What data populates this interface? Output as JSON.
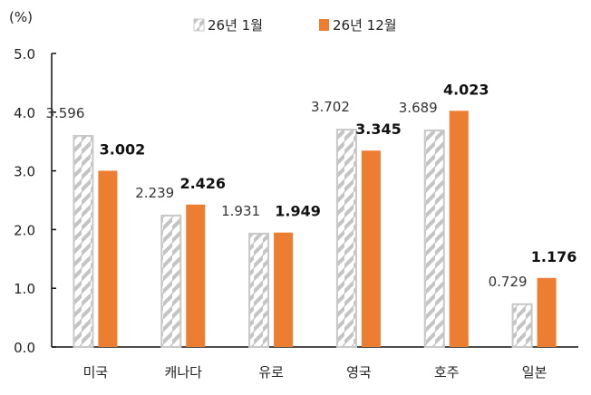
{
  "chart_data": {
    "type": "bar",
    "ylabel": "(%)",
    "ylim": [
      0,
      5
    ],
    "yticks": [
      "0.0",
      "1.0",
      "2.0",
      "3.0",
      "4.0",
      "5.0"
    ],
    "grid": false,
    "legend_position": "top",
    "categories": [
      "미국",
      "캐나다",
      "유로",
      "영국",
      "호주",
      "일본"
    ],
    "series": [
      {
        "name": "26년 1월",
        "values": [
          3.596,
          2.239,
          1.931,
          3.702,
          3.689,
          0.729
        ],
        "labels": [
          "3.596",
          "2.239",
          "1.931",
          "3.702",
          "3.689",
          "0.729"
        ],
        "color": "#c8c8c8",
        "pattern": "diagonal-hatch"
      },
      {
        "name": "26년 12월",
        "values": [
          3.002,
          2.426,
          1.949,
          3.345,
          4.023,
          1.176
        ],
        "labels": [
          "3.002",
          "2.426",
          "1.949",
          "3.345",
          "4.023",
          "1.176"
        ],
        "color": "#ed7d31"
      }
    ]
  }
}
